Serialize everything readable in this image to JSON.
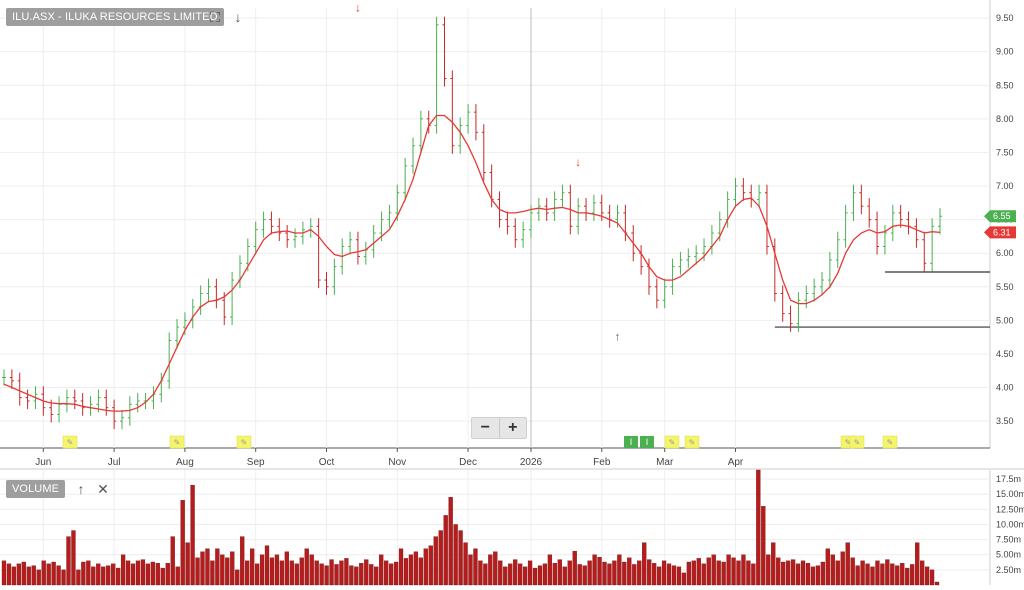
{
  "header": {
    "title": "ILU.ASX - ILUKA RESOURCES LIMITED",
    "expand_icon": "expand-icon",
    "download_icon": "arrow-down-icon"
  },
  "volume_panel": {
    "label": "VOLUME",
    "up_icon": "arrow-up-icon",
    "close_icon": "close-icon"
  },
  "zoom": {
    "minus": "−",
    "plus": "+"
  },
  "colors": {
    "up_bar": "#4caf50",
    "down_bar": "#c62828",
    "ma_line": "#e53935",
    "volume_bar": "#b71c1c",
    "gridline": "#eeeeee",
    "last_price_tag": "#4caf50",
    "ma_tag": "#e53935",
    "annotation_marker": "#f5f56b",
    "dividend_marker": "#4caf50"
  },
  "chart_data": [
    {
      "type": "ohlc",
      "title": "ILU.ASX - ILUKA RESOURCES LIMITED",
      "x_months": [
        "Jun",
        "Jul",
        "Aug",
        "Sep",
        "Oct",
        "Nov",
        "Dec",
        "2026",
        "Feb",
        "Mar",
        "Apr"
      ],
      "y_ticks": [
        "3.50",
        "4.00",
        "4.50",
        "5.00",
        "5.50",
        "6.00",
        "6.50",
        "7.00",
        "7.50",
        "8.00",
        "8.50",
        "9.00",
        "9.50"
      ],
      "ylim": [
        3.1,
        9.65
      ],
      "price_series": [
        4.15,
        4.1,
        3.85,
        3.8,
        3.9,
        3.7,
        3.6,
        3.75,
        3.85,
        3.8,
        3.7,
        3.75,
        3.85,
        3.7,
        3.5,
        3.55,
        3.75,
        3.8,
        3.8,
        3.9,
        4.1,
        4.7,
        4.9,
        5.0,
        5.2,
        5.4,
        5.5,
        5.3,
        5.05,
        5.6,
        5.85,
        6.1,
        6.35,
        6.5,
        6.4,
        6.3,
        6.2,
        6.25,
        6.35,
        6.4,
        5.6,
        5.5,
        5.8,
        6.1,
        6.2,
        5.95,
        6.05,
        6.3,
        6.5,
        6.6,
        6.9,
        7.3,
        7.6,
        8.0,
        7.9,
        9.4,
        8.6,
        7.6,
        7.9,
        8.1,
        7.8,
        7.2,
        6.8,
        6.5,
        6.4,
        6.2,
        6.35,
        6.6,
        6.7,
        6.6,
        6.8,
        6.9,
        6.4,
        6.7,
        6.6,
        6.75,
        6.6,
        6.5,
        6.6,
        6.3,
        6.0,
        5.8,
        5.5,
        5.3,
        5.5,
        5.8,
        5.9,
        5.95,
        6.0,
        6.1,
        6.3,
        6.5,
        6.8,
        7.0,
        6.9,
        6.8,
        6.9,
        6.1,
        5.4,
        5.1,
        4.95,
        5.3,
        5.4,
        5.5,
        5.6,
        5.9,
        6.2,
        6.6,
        6.9,
        6.7,
        6.5,
        6.1,
        6.3,
        6.6,
        6.5,
        6.4,
        6.2,
        5.85,
        6.4,
        6.55
      ],
      "moving_average": [
        4.05,
        4.0,
        3.95,
        3.9,
        3.85,
        3.8,
        3.77,
        3.76,
        3.76,
        3.75,
        3.72,
        3.7,
        3.68,
        3.66,
        3.65,
        3.65,
        3.66,
        3.7,
        3.78,
        3.9,
        4.1,
        4.35,
        4.6,
        4.85,
        5.05,
        5.2,
        5.28,
        5.3,
        5.35,
        5.45,
        5.6,
        5.8,
        6.0,
        6.2,
        6.3,
        6.32,
        6.33,
        6.3,
        6.3,
        6.35,
        6.25,
        6.1,
        5.98,
        5.95,
        6.0,
        6.02,
        6.05,
        6.15,
        6.25,
        6.35,
        6.55,
        6.8,
        7.1,
        7.5,
        7.9,
        8.05,
        8.05,
        7.95,
        7.8,
        7.6,
        7.35,
        7.05,
        6.8,
        6.65,
        6.6,
        6.6,
        6.62,
        6.65,
        6.67,
        6.65,
        6.67,
        6.68,
        6.65,
        6.6,
        6.6,
        6.58,
        6.55,
        6.5,
        6.45,
        6.3,
        6.15,
        6.0,
        5.8,
        5.65,
        5.6,
        5.6,
        5.65,
        5.75,
        5.85,
        5.95,
        6.1,
        6.25,
        6.5,
        6.7,
        6.8,
        6.82,
        6.7,
        6.4,
        6.0,
        5.6,
        5.3,
        5.25,
        5.25,
        5.3,
        5.38,
        5.5,
        5.7,
        6.0,
        6.2,
        6.3,
        6.35,
        6.3,
        6.32,
        6.4,
        6.42,
        6.4,
        6.35,
        6.3,
        6.32,
        6.31
      ],
      "last_price": "6.55",
      "moving_average_last": "6.31",
      "support_lines": [
        4.9,
        5.72
      ],
      "signal_up_arrows": [
        {
          "month": "Feb",
          "price": 4.85
        }
      ],
      "signal_down_arrows": [
        {
          "month": "Oct",
          "price": 9.6
        },
        {
          "month": "2026",
          "price": 7.3
        }
      ],
      "ylabel": "",
      "xlabel": ""
    },
    {
      "type": "bar",
      "title": "VOLUME",
      "y_ticks": [
        "2.50m",
        "5.00m",
        "7.50m",
        "10.00m",
        "12.50m",
        "15.00m",
        "17.5m"
      ],
      "ylim": [
        0,
        19
      ],
      "values": [
        4,
        3.5,
        3,
        3.5,
        3.8,
        3,
        3.2,
        2.5,
        4,
        3.5,
        3.8,
        3.2,
        2.5,
        8,
        9,
        2.5,
        3.8,
        4,
        3,
        3.5,
        3,
        3.2,
        3.5,
        2.8,
        5,
        4,
        3.5,
        4,
        4.2,
        3.5,
        3.8,
        3.6,
        2.8,
        3.6,
        8,
        3,
        14,
        7,
        16.5,
        4.5,
        5.5,
        6,
        4,
        6,
        5,
        4.5,
        5.5,
        2.5,
        8,
        4,
        6,
        3.5,
        5,
        6.5,
        4.5,
        5,
        4,
        5.5,
        4,
        3.5,
        4.5,
        6,
        5,
        4,
        3.5,
        3.2,
        4.2,
        3.4,
        4,
        4.4,
        3.2,
        3,
        3.6,
        4.2,
        3.4,
        3,
        5,
        4,
        3.5,
        3.8,
        6,
        4.4,
        5,
        5.5,
        4.5,
        6,
        6.5,
        8,
        9,
        11.5,
        14.5,
        10,
        9,
        7,
        5,
        6,
        4,
        3.5,
        5,
        5.5,
        4,
        3,
        3.5,
        4.2,
        3.5,
        3,
        4,
        2.8,
        3.2,
        3.5,
        5,
        3.6,
        4.2,
        3,
        4,
        5.6,
        3.4,
        3.2,
        4,
        5,
        4.6,
        3.8,
        3.5,
        4,
        5,
        3.8,
        4.5,
        3.4,
        4,
        7,
        4.2,
        3.6,
        3,
        4,
        3.5,
        3.2,
        3,
        2,
        3.8,
        4,
        4.4,
        3.5,
        4.5,
        5,
        4,
        3.8,
        5,
        4.5,
        4,
        5,
        4,
        3.5,
        19,
        13,
        5,
        7,
        4.5,
        3.8,
        4,
        4.2,
        3.5,
        4,
        3.6,
        3,
        3.2,
        3.8,
        6,
        5,
        4,
        5.5,
        7,
        4.5,
        3.2,
        4,
        3.5,
        3,
        4,
        3.5,
        4.2,
        3.5,
        3.2,
        3.6,
        2.8,
        3.4,
        7,
        4,
        3,
        2.5,
        0.5
      ],
      "ylabel": "",
      "xlabel": ""
    }
  ]
}
